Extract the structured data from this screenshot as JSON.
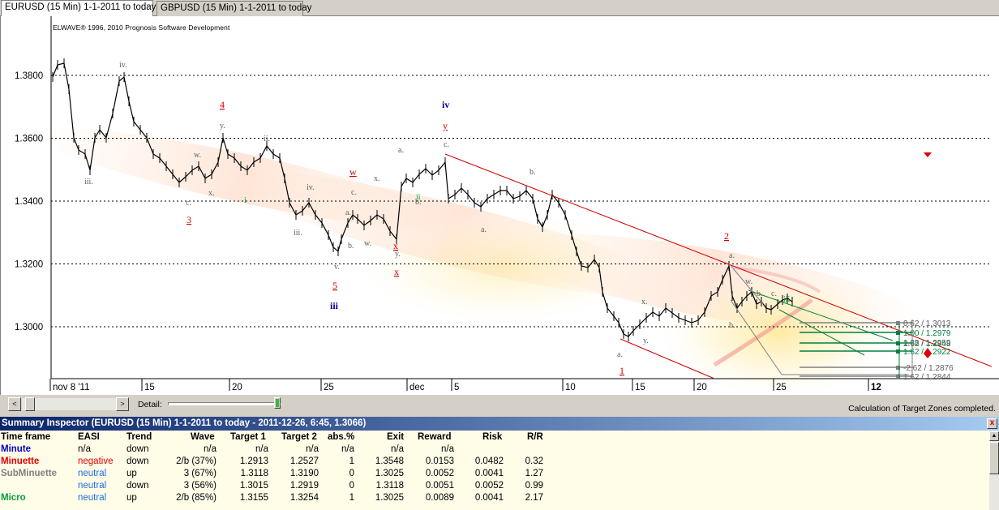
{
  "tabs": [
    {
      "label": "EURUSD (15 Min)  1-1-2011 to today",
      "active": true
    },
    {
      "label": "GBPUSD (15 Min)  1-1-2011 to today",
      "active": false
    }
  ],
  "chart": {
    "copyright": "ELWAVE® 1996, 2010 Prognosis Software Development",
    "y_ticks": [
      "1.3800",
      "1.3600",
      "1.3400",
      "1.3200",
      "1.3000"
    ],
    "x_ticks": [
      "nov 8 '11",
      "15",
      "20",
      "25",
      "dec",
      "5",
      "10",
      "15",
      "20",
      "25",
      "12"
    ],
    "target_labels": [
      "0.62 / 1.3013",
      "1.00 / 1.2979",
      "2.62 / 1.2948",
      "1.62 / 1.2922",
      "-2.62 / 1.2876",
      "1.62 / 1.2844"
    ],
    "target_overlap": "1.38 / 1.2959",
    "wave_labels_red": [
      "4",
      "3",
      "5",
      "w",
      "x",
      "y",
      "x",
      "2",
      "1"
    ],
    "wave_labels_blue": [
      "iv",
      "iii"
    ],
    "wave_labels_gray": [
      "iv.",
      "iii.",
      "y.",
      "w.",
      "x.",
      "v.",
      "ii.",
      "iv.",
      "iii.",
      "a.",
      "b.",
      "c.",
      "w.",
      "x.",
      "y.",
      "a.",
      "b.",
      "c.",
      "a.",
      "b.",
      "c.",
      "a.",
      "b.",
      "w.",
      "x.",
      "y.",
      "a.",
      "b.",
      "c.",
      "i",
      "ii",
      "iii"
    ]
  },
  "controls": {
    "scroll_left": "<",
    "scroll_right": ">",
    "detail_label": "Detail:",
    "status": "Calculation of Target Zones completed."
  },
  "summary": {
    "title": "Summary Inspector (EURUSD (15 Min)  1-1-2011 to today - 2011-12-26, 6:45, 1.3066)",
    "close": "x",
    "headers": {
      "tf": "Time frame",
      "easi": "EASI",
      "trend": "Trend",
      "wave": "Wave",
      "t1": "Target 1",
      "t2": "Target 2",
      "abs": "abs.%",
      "exit": "Exit",
      "rew": "Reward",
      "risk": "Risk",
      "rr": "R/R"
    },
    "rows": [
      {
        "tf": "Minute",
        "tf_color": "#0000cc",
        "easi": "n/a",
        "easi_color": "#000000",
        "trend": "down",
        "wave": "n/a",
        "t1": "n/a",
        "t2": "n/a",
        "abs": "n/a",
        "exit": "n/a",
        "rew": "n/a",
        "risk": "",
        "rr": ""
      },
      {
        "tf": "Minuette",
        "tf_color": "#dd0000",
        "easi": "negative",
        "easi_color": "#dd0000",
        "trend": "down",
        "wave": "2/b (37%)",
        "t1": "1.2913",
        "t2": "1.2527",
        "abs": "1",
        "exit": "1.3548",
        "rew": "0.0153",
        "risk": "0.0482",
        "rr": "0.32"
      },
      {
        "tf": "SubMinuette",
        "tf_color": "#808080",
        "easi": "neutral",
        "easi_color": "#1e6ee6",
        "trend": "up",
        "wave": "3 (67%)",
        "t1": "1.3118",
        "t2": "1.3190",
        "abs": "0",
        "exit": "1.3025",
        "rew": "0.0052",
        "risk": "0.0041",
        "rr": "1.27"
      },
      {
        "tf": "",
        "tf_color": "#808080",
        "easi": "neutral",
        "easi_color": "#1e6ee6",
        "trend": "down",
        "wave": "3 (56%)",
        "t1": "1.3015",
        "t2": "1.2919",
        "abs": "0",
        "exit": "1.3118",
        "rew": "0.0051",
        "risk": "0.0052",
        "rr": "0.99"
      },
      {
        "tf": "Micro",
        "tf_color": "#00a040",
        "easi": "neutral",
        "easi_color": "#1e6ee6",
        "trend": "up",
        "wave": "2/b (85%)",
        "t1": "1.3155",
        "t2": "1.3254",
        "abs": "1",
        "exit": "1.3025",
        "rew": "0.0089",
        "risk": "0.0041",
        "rr": "2.17"
      }
    ]
  }
}
